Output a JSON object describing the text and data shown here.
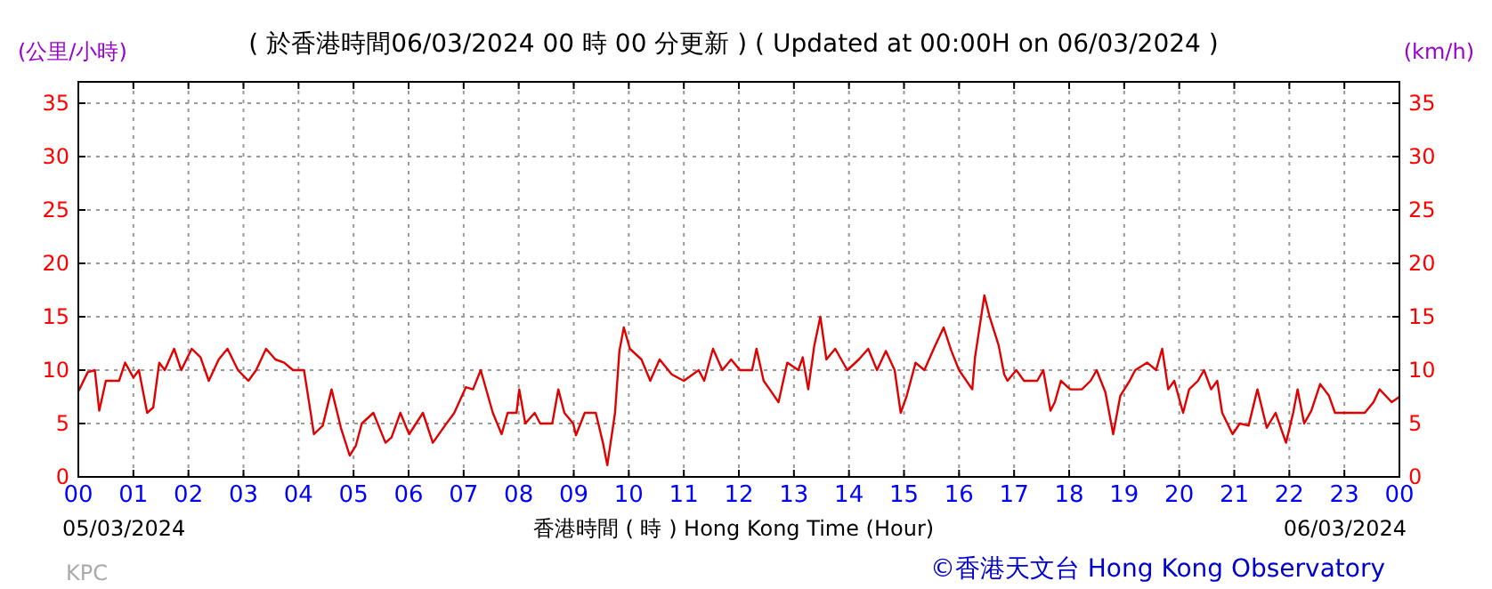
{
  "chart_data": {
    "type": "line",
    "title": "( 於香港時間06/03/2024 00 時 00 分更新 ) ( Updated at 00:00H on 06/03/2024 )",
    "ylabel": "(公里/小時)",
    "y2label": "(km/h)",
    "xlabel": "香港時間 ( 時 ) Hong Kong Time (Hour)",
    "annotations": [
      "05/03/2024",
      "06/03/2024",
      "KPC",
      "©香港天文台 Hong Kong Observatory"
    ],
    "xlim": [
      0,
      24
    ],
    "xticks": [
      {
        "value": 0,
        "label": "00"
      },
      {
        "value": 1,
        "label": "01"
      },
      {
        "value": 2,
        "label": "02"
      },
      {
        "value": 3,
        "label": "03"
      },
      {
        "value": 4,
        "label": "04"
      },
      {
        "value": 5,
        "label": "05"
      },
      {
        "value": 6,
        "label": "06"
      },
      {
        "value": 7,
        "label": "07"
      },
      {
        "value": 8,
        "label": "08"
      },
      {
        "value": 9,
        "label": "09"
      },
      {
        "value": 10,
        "label": "10"
      },
      {
        "value": 11,
        "label": "11"
      },
      {
        "value": 12,
        "label": "12"
      },
      {
        "value": 13,
        "label": "13"
      },
      {
        "value": 14,
        "label": "14"
      },
      {
        "value": 15,
        "label": "15"
      },
      {
        "value": 16,
        "label": "16"
      },
      {
        "value": 17,
        "label": "17"
      },
      {
        "value": 18,
        "label": "18"
      },
      {
        "value": 19,
        "label": "19"
      },
      {
        "value": 20,
        "label": "20"
      },
      {
        "value": 21,
        "label": "21"
      },
      {
        "value": 22,
        "label": "22"
      },
      {
        "value": 23,
        "label": "23"
      },
      {
        "value": 24,
        "label": "00"
      }
    ],
    "ylim": [
      0,
      37
    ],
    "yticks": [
      0,
      5,
      10,
      15,
      20,
      25,
      30,
      35
    ],
    "y2lim": [
      0,
      37
    ],
    "y2ticks": [
      0,
      5,
      10,
      15,
      20,
      25,
      30,
      35
    ],
    "grid": true,
    "marker": "none",
    "line_style": "solid",
    "series": [
      {
        "color": "#e00000",
        "x": [
          0,
          0.17,
          0.3,
          0.38,
          0.5,
          0.74,
          0.85,
          1.0,
          1.1,
          1.25,
          1.36,
          1.47,
          1.57,
          1.74,
          1.87,
          2.06,
          2.22,
          2.37,
          2.55,
          2.71,
          2.9,
          3.09,
          3.23,
          3.41,
          3.58,
          3.74,
          3.9,
          4.1,
          4.23,
          4.28,
          4.44,
          4.6,
          4.77,
          4.93,
          5.04,
          5.15,
          5.36,
          5.58,
          5.69,
          5.85,
          6.01,
          6.26,
          6.44,
          6.66,
          6.83,
          7.04,
          7.17,
          7.31,
          7.53,
          7.69,
          7.8,
          7.96,
          8.01,
          8.12,
          8.29,
          8.39,
          8.61,
          8.72,
          8.83,
          8.99,
          9.04,
          9.2,
          9.4,
          9.53,
          9.61,
          9.75,
          9.83,
          9.91,
          10.02,
          10.23,
          10.39,
          10.56,
          10.78,
          11.0,
          11.27,
          11.37,
          11.53,
          11.7,
          11.86,
          12.02,
          12.24,
          12.32,
          12.45,
          12.56,
          12.72,
          12.88,
          13.08,
          13.16,
          13.26,
          13.37,
          13.48,
          13.59,
          13.75,
          13.97,
          14.18,
          14.35,
          14.51,
          14.67,
          14.83,
          14.94,
          15.05,
          15.21,
          15.37,
          15.54,
          15.72,
          15.86,
          16.0,
          16.24,
          16.29,
          16.46,
          16.55,
          16.72,
          16.82,
          16.88,
          17.04,
          17.18,
          17.42,
          17.53,
          17.66,
          17.74,
          17.85,
          18.02,
          18.23,
          18.39,
          18.5,
          18.66,
          18.8,
          18.93,
          19.1,
          19.2,
          19.42,
          19.58,
          19.69,
          19.8,
          19.91,
          20.07,
          20.18,
          20.34,
          20.45,
          20.58,
          20.69,
          20.78,
          20.97,
          21.1,
          21.26,
          21.42,
          21.59,
          21.75,
          21.94,
          22.07,
          22.15,
          22.27,
          22.4,
          22.56,
          22.72,
          22.83,
          23.37,
          23.53,
          23.64,
          23.86,
          24
        ],
        "values": [
          8,
          9.8,
          10,
          6.2,
          9,
          9,
          10.7,
          9.3,
          10,
          6,
          6.5,
          10.7,
          10,
          12,
          10,
          12,
          11.2,
          9,
          11,
          12,
          10,
          9,
          10,
          12,
          11,
          10.7,
          10,
          10,
          5.7,
          4,
          4.8,
          8.2,
          4.6,
          2,
          2.9,
          5,
          6,
          3.2,
          3.7,
          6,
          4,
          6,
          3.2,
          4.8,
          6,
          8.4,
          8.2,
          10,
          6,
          4,
          6,
          6,
          8.2,
          5,
          6,
          5,
          5,
          8.2,
          6,
          5,
          3.9,
          6,
          6,
          3.2,
          1.1,
          6,
          11.8,
          14,
          12,
          11,
          9,
          11,
          9.6,
          9,
          10,
          9,
          12,
          10,
          11,
          10,
          10,
          12,
          9,
          8.2,
          7,
          10.7,
          10,
          11.2,
          8.2,
          12.3,
          15,
          11,
          12,
          10,
          11,
          12,
          10,
          11.8,
          10,
          6,
          7.6,
          10.7,
          10,
          12,
          14,
          11.8,
          10,
          8.2,
          11.2,
          17,
          15.1,
          12.3,
          9.6,
          9,
          10,
          9,
          9,
          10,
          6.2,
          7,
          9,
          8.2,
          8.2,
          9,
          10,
          7.9,
          4,
          7.6,
          9,
          10,
          10.7,
          10,
          12,
          8.2,
          9,
          6,
          8.2,
          9,
          10,
          8.2,
          9,
          6,
          4,
          5,
          4.8,
          8.2,
          4.6,
          6,
          3.2,
          6,
          8.2,
          5,
          6.2,
          8.7,
          7.6,
          6,
          6,
          7,
          8.2,
          7,
          7.5
        ]
      }
    ]
  }
}
